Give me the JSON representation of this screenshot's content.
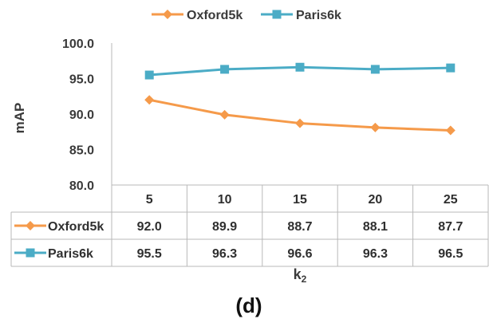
{
  "chart_data": {
    "type": "line",
    "categories": [
      "5",
      "10",
      "15",
      "20",
      "25"
    ],
    "series": [
      {
        "name": "Oxford5k",
        "values": [
          92.0,
          89.9,
          88.7,
          88.1,
          87.7
        ],
        "labels": [
          "92.0",
          "89.9",
          "88.7",
          "88.1",
          "87.7"
        ],
        "color": "#F59A4A",
        "marker": "diamond"
      },
      {
        "name": "Paris6k",
        "values": [
          95.5,
          96.3,
          96.6,
          96.3,
          96.5
        ],
        "labels": [
          "95.5",
          "96.3",
          "96.6",
          "96.3",
          "96.5"
        ],
        "color": "#4BACC6",
        "marker": "square"
      }
    ],
    "yticks": [
      "80.0",
      "85.0",
      "90.0",
      "95.0",
      "100.0"
    ],
    "ylim": [
      80,
      100
    ],
    "ylabel": "mAP",
    "xlabel_main": "k",
    "xlabel_sub": "2",
    "caption": "(d)",
    "legend_position": "top",
    "data_table": true,
    "grid": false
  }
}
